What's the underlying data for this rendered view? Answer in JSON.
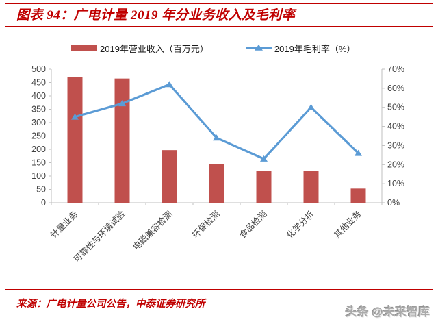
{
  "header": {
    "title": "图表 94：广电计量 2019 年分业务收入及毛利率"
  },
  "footer": {
    "source": "来源：广电计量公司公告，中泰证券研究所",
    "watermark": "头条 @未来智库"
  },
  "icons": {
    "bar_legend_swatch": "red-rectangle",
    "line_legend_marker": "blue-line-with-up-triangle"
  },
  "chart_data": {
    "type": "combo",
    "title": "广电计量 2019 年分业务收入及毛利率",
    "categories": [
      "计量业务",
      "可靠性与环境试验",
      "电磁兼容检测",
      "环保检测",
      "食品检测",
      "化学分析",
      "其他业务"
    ],
    "series": [
      {
        "name": "2019年营业收入（百万元）",
        "type": "bar",
        "axis": "left",
        "values": [
          470,
          465,
          197,
          146,
          120,
          119,
          53
        ]
      },
      {
        "name": "2019年毛利率（%）",
        "type": "line",
        "axis": "right",
        "values": [
          45,
          52,
          62,
          34,
          23,
          50,
          26
        ]
      }
    ],
    "left_axis": {
      "min": 0,
      "max": 500,
      "tick_labels": [
        "0",
        "50",
        "100",
        "150",
        "200",
        "250",
        "300",
        "350",
        "400",
        "450",
        "500"
      ]
    },
    "right_axis": {
      "min": 0,
      "max": 70,
      "tick_labels": [
        "0%",
        "10%",
        "20%",
        "30%",
        "40%",
        "50%",
        "60%",
        "70%"
      ]
    },
    "legend_position": "top",
    "grid": false,
    "colors": {
      "bar": "#C0504D",
      "line": "#5B9BD5",
      "accent_red": "#C00000",
      "axis_line": "#BFBFBF",
      "axis_text": "#404040",
      "watermark": "#ABABAB"
    }
  }
}
